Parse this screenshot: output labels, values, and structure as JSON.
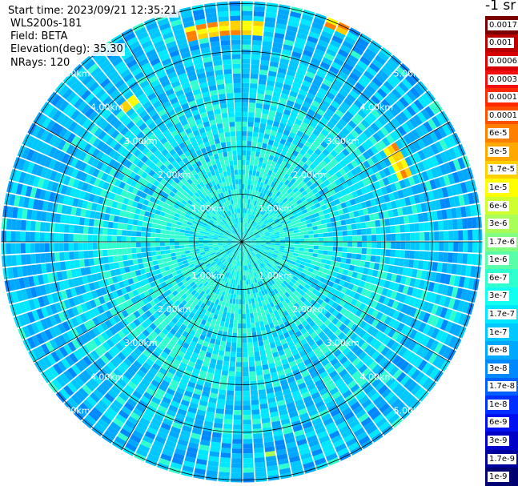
{
  "header": {
    "start_time": "Start time: 2023/09/21 12:35:21",
    "system": "WLS200s-181",
    "field": "Field: BETA",
    "elevation": "Elevation(deg): 35.30",
    "nrays": "NRays: 120"
  },
  "colorbar": {
    "unit_label": "-1 sr",
    "levels": [
      {
        "label": "0.0017",
        "color": "#7a0000"
      },
      {
        "label": "0.001",
        "color": "#b80000"
      },
      {
        "label": "0.0006",
        "color": "#d80000"
      },
      {
        "label": "0.0003",
        "color": "#f01010"
      },
      {
        "label": "0.00017",
        "color": "#ff2a00"
      },
      {
        "label": "0.0001",
        "color": "#ff5000"
      },
      {
        "label": "6e-5",
        "color": "#ff8000"
      },
      {
        "label": "3e-5",
        "color": "#ffa800"
      },
      {
        "label": "1.7e-5",
        "color": "#ffd000"
      },
      {
        "label": "1e-5",
        "color": "#ffff00"
      },
      {
        "label": "6e-6",
        "color": "#d0ff30"
      },
      {
        "label": "3e-6",
        "color": "#a8ff58"
      },
      {
        "label": "1.7e-6",
        "color": "#80ff80"
      },
      {
        "label": "1e-6",
        "color": "#58ffa8"
      },
      {
        "label": "6e-7",
        "color": "#30ffd0"
      },
      {
        "label": "3e-7",
        "color": "#10fff0"
      },
      {
        "label": "1.7e-7",
        "color": "#00e8ff"
      },
      {
        "label": "1e-7",
        "color": "#00c8ff"
      },
      {
        "label": "6e-8",
        "color": "#00a8ff"
      },
      {
        "label": "3e-8",
        "color": "#0088ff"
      },
      {
        "label": "1.7e-8",
        "color": "#0060ff"
      },
      {
        "label": "1e-8",
        "color": "#0030ff"
      },
      {
        "label": "6e-9",
        "color": "#0010f0"
      },
      {
        "label": "3e-9",
        "color": "#0000c8"
      },
      {
        "label": "1.7e-9",
        "color": "#00009c"
      },
      {
        "label": "1e-9",
        "color": "#000070"
      }
    ]
  },
  "chart_data": {
    "type": "heatmap",
    "title": "",
    "projection": "polar PPI",
    "n_rays": 120,
    "field": "BETA",
    "range_rings_km": [
      1.0,
      2.0,
      3.0,
      4.0,
      5.0
    ],
    "ring_labels": [
      "1.00km",
      "2.00km",
      "3.00km",
      "4.00km",
      "5.00km"
    ],
    "spokes_every_deg": 30,
    "background_value": "3e-7 to 1e-7",
    "outer_value": "3e-8 to 1e-7",
    "enhanced_regions": [
      {
        "azimuth_deg": [
          345,
          5
        ],
        "range_km": [
          4.3,
          4.6
        ],
        "value": "1e-5 to 1e-4"
      },
      {
        "azimuth_deg": [
          22,
          28
        ],
        "range_km": [
          4.8,
          5.0
        ],
        "value": "1e-5 to 6e-5"
      },
      {
        "azimuth_deg": [
          318,
          323
        ],
        "range_km": [
          3.6,
          3.8
        ],
        "value": "1e-5 to 6e-5"
      },
      {
        "azimuth_deg": [
          58,
          68
        ],
        "range_km": [
          3.5,
          3.8
        ],
        "value": "1e-5 to 1e-4"
      },
      {
        "azimuth_deg": [
          296,
          298
        ],
        "range_km": [
          4.3,
          4.4
        ],
        "value": "1.7e-5"
      },
      {
        "azimuth_deg": [
          172,
          174
        ],
        "range_km": [
          4.4,
          4.5
        ],
        "value": "1e-6"
      }
    ]
  }
}
